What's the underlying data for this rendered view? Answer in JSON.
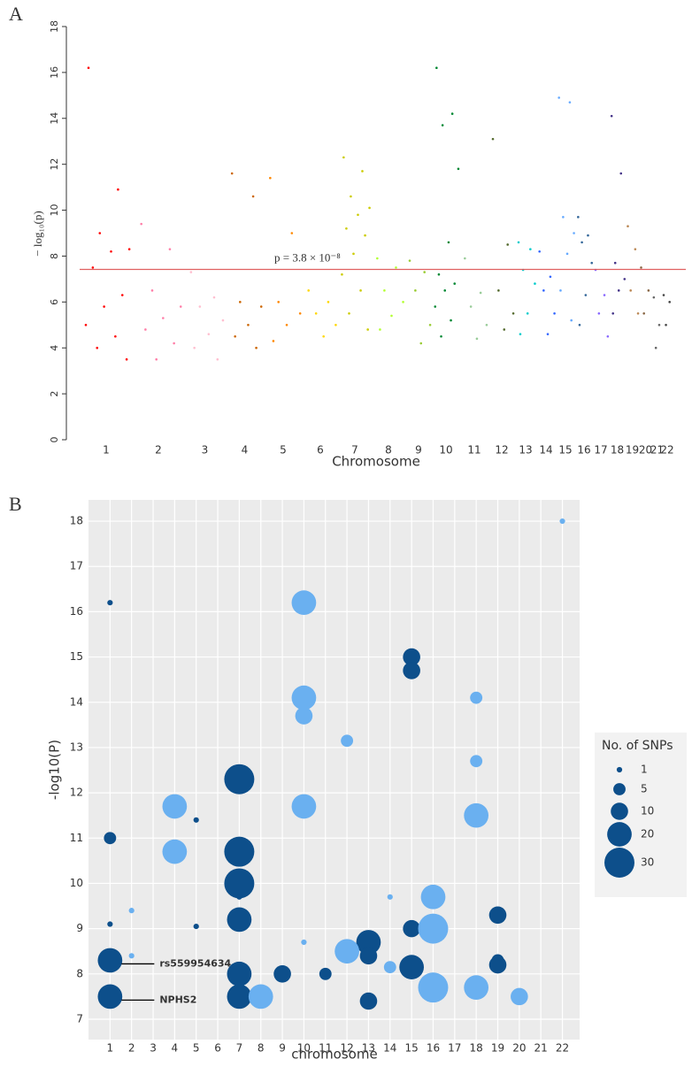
{
  "chart_data": [
    {
      "type": "manhattan",
      "panel": "A",
      "xlabel": "Chromosome",
      "ylabel": "− log₁₀(p)",
      "categories": [
        "1",
        "2",
        "3",
        "4",
        "5",
        "6",
        "7",
        "8",
        "9",
        "10",
        "11",
        "12",
        "13",
        "14",
        "15",
        "16",
        "17",
        "18",
        "19",
        "20",
        "21",
        "22"
      ],
      "colors": [
        "#ff0000",
        "#ff7fa8",
        "#ffbfd0",
        "#cc6600",
        "#ff8800",
        "#ffd700",
        "#cccc00",
        "#b3ff33",
        "#99cc33",
        "#008833",
        "#99cc99",
        "#556b2f",
        "#00cccc",
        "#3366ff",
        "#66aaff",
        "#336699",
        "#8866ff",
        "#443388",
        "#bb8855",
        "#886644",
        "#666666",
        "#444444"
      ],
      "values": [
        [
          16.2,
          10.9,
          9.0,
          8.3,
          8.2,
          7.5,
          6.3,
          5.8,
          5.0,
          4.5,
          4.0,
          3.5
        ],
        [
          9.4,
          8.3,
          6.5,
          5.8,
          5.3,
          4.8,
          4.2,
          3.5
        ],
        [
          7.3,
          6.2,
          5.8,
          5.2,
          4.6,
          4.0,
          3.5
        ],
        [
          11.6,
          10.6,
          6.0,
          5.8,
          5.0,
          4.5,
          4.0
        ],
        [
          11.4,
          9.0,
          6.0,
          5.5,
          5.0,
          4.3
        ],
        [
          6.5,
          6.0,
          5.5,
          5.0,
          4.5
        ],
        [
          12.3,
          11.7,
          10.6,
          10.1,
          9.8,
          9.2,
          8.9,
          8.1,
          7.2,
          6.5,
          5.5,
          4.8
        ],
        [
          7.9,
          7.5,
          6.5,
          6.0,
          5.4,
          4.8
        ],
        [
          7.8,
          7.3,
          6.5,
          5.0,
          4.2
        ],
        [
          16.2,
          14.2,
          13.7,
          11.8,
          8.6,
          7.2,
          6.8,
          6.5,
          5.8,
          5.2,
          4.5
        ],
        [
          7.9,
          6.4,
          5.8,
          5.0,
          4.4
        ],
        [
          13.1,
          8.5,
          6.5,
          5.5,
          4.8
        ],
        [
          8.6,
          8.3,
          7.4,
          6.8,
          5.5,
          4.6
        ],
        [
          8.2,
          7.1,
          6.5,
          5.5,
          4.6
        ],
        [
          14.9,
          14.7,
          9.7,
          9.0,
          8.1,
          6.5,
          5.2
        ],
        [
          9.7,
          8.9,
          8.6,
          7.7,
          6.3,
          5.0
        ],
        [
          7.4,
          6.3,
          5.5,
          4.5
        ],
        [
          14.1,
          11.6,
          7.7,
          7.0,
          6.5,
          5.5
        ],
        [
          9.3,
          8.3,
          6.5,
          5.5
        ],
        [
          7.5,
          6.5,
          5.5
        ],
        [
          6.2,
          5.0,
          4.0
        ],
        [
          6.3,
          6.0,
          5.0
        ]
      ],
      "ylim": [
        0,
        18
      ],
      "yticks": [
        0,
        2,
        4,
        6,
        8,
        10,
        12,
        14,
        16,
        18
      ],
      "threshold": 7.42,
      "threshold_color": "#e06060",
      "threshold_label": "p = 3.8 × 10⁻⁸"
    },
    {
      "type": "bubble",
      "panel": "B",
      "xlabel": "chromosome",
      "ylabel": "-log10(P)",
      "xlim": [
        0,
        22.8
      ],
      "ylim": [
        6.55,
        18.47
      ],
      "xticks": [
        1,
        2,
        3,
        4,
        5,
        6,
        7,
        8,
        9,
        10,
        11,
        12,
        13,
        14,
        15,
        16,
        17,
        18,
        19,
        20,
        21,
        22
      ],
      "yticks": [
        7,
        8,
        9,
        10,
        11,
        12,
        13,
        14,
        15,
        16,
        17,
        18
      ],
      "grid": true,
      "series": [
        {
          "color": "#0d4f8b",
          "x": [
            1,
            1,
            1,
            1,
            1,
            5,
            5,
            7,
            7,
            7,
            7,
            7,
            7,
            7,
            9,
            11,
            13,
            13,
            13,
            15,
            15,
            15,
            15,
            19,
            19,
            19
          ],
          "values": [
            16.2,
            11,
            9.1,
            8.3,
            7.5,
            11.4,
            9.05,
            12.3,
            10.7,
            10,
            9.7,
            9.2,
            8,
            7.5,
            8,
            8,
            8.7,
            8.4,
            7.4,
            15,
            14.7,
            9,
            8.15,
            9.3,
            8.3,
            8.2
          ],
          "sizes": [
            1,
            5,
            1,
            20,
            20,
            1,
            1,
            30,
            30,
            30,
            1,
            20,
            20,
            20,
            10,
            5,
            20,
            10,
            10,
            10,
            10,
            10,
            20,
            10,
            5,
            10
          ]
        },
        {
          "color": "#6ab0f0",
          "x": [
            2,
            2,
            4,
            4,
            8,
            10,
            10,
            10,
            10,
            10,
            12,
            12,
            14,
            14,
            16,
            16,
            16,
            18,
            18,
            18,
            18,
            20,
            22
          ],
          "values": [
            9.4,
            8.4,
            11.7,
            10.7,
            7.5,
            16.2,
            14.1,
            13.7,
            11.7,
            8.7,
            13.15,
            8.5,
            9.7,
            8.15,
            9.7,
            9.0,
            7.7,
            14.1,
            12.7,
            11.5,
            7.7,
            7.5,
            18
          ],
          "sizes": [
            1,
            1,
            20,
            20,
            20,
            20,
            20,
            10,
            20,
            1,
            5,
            20,
            1,
            5,
            20,
            30,
            30,
            5,
            5,
            20,
            20,
            10,
            1
          ]
        }
      ],
      "size_legend": {
        "title": "No. of SNPs",
        "values": [
          1,
          5,
          10,
          20,
          30
        ],
        "color": "#0d4f8b"
      },
      "annotations": [
        {
          "text": "rs559954634",
          "x": 1,
          "y": 8.3
        },
        {
          "text": "NPHS2",
          "x": 1,
          "y": 7.5
        }
      ]
    }
  ]
}
